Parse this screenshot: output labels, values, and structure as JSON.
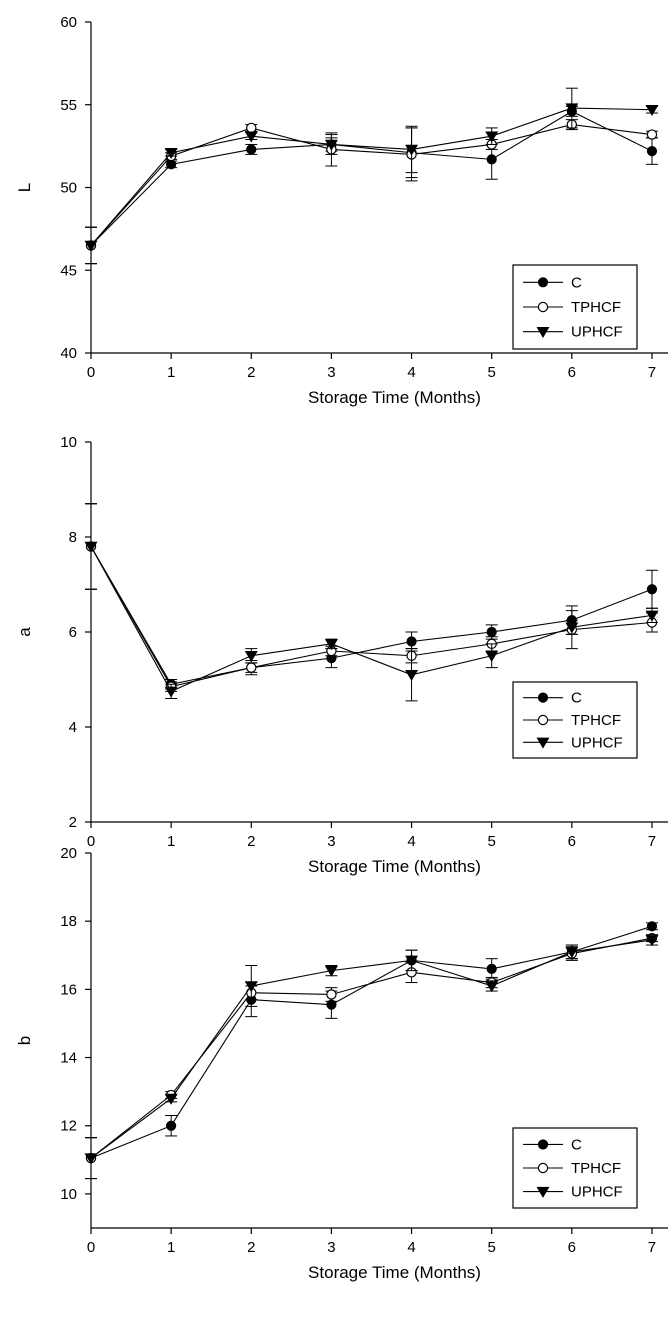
{
  "chart_data": [
    {
      "type": "line",
      "ylabel": "L",
      "xlabel": "Storage Time (Months)",
      "x": [
        0,
        1,
        2,
        3,
        4,
        5,
        6,
        7
      ],
      "xlim": [
        0,
        7.2
      ],
      "ylim": [
        40,
        60
      ],
      "yticks": [
        40,
        45,
        50,
        55,
        60
      ],
      "legend": "bottom-right",
      "series": [
        {
          "name": "C",
          "marker": "filled-circle",
          "values": [
            46.5,
            51.4,
            52.3,
            52.6,
            52.1,
            51.7,
            54.6,
            52.2
          ],
          "errors": [
            1.1,
            0.2,
            0.3,
            0.4,
            1.5,
            1.2,
            0.3,
            0.8
          ]
        },
        {
          "name": "TPHCF",
          "marker": "open-circle",
          "values": [
            46.5,
            51.9,
            53.6,
            52.3,
            52.0,
            52.6,
            53.8,
            53.2
          ],
          "errors": [
            1.1,
            0.2,
            0.2,
            1.0,
            1.6,
            0.3,
            0.3,
            0.2
          ]
        },
        {
          "name": "UPHCF",
          "marker": "filled-triangle-down",
          "values": [
            46.5,
            52.1,
            53.1,
            52.6,
            52.3,
            53.1,
            54.8,
            54.7
          ],
          "errors": [
            1.1,
            0.2,
            0.2,
            0.6,
            1.4,
            0.5,
            1.2,
            0.2
          ]
        }
      ]
    },
    {
      "type": "line",
      "ylabel": "a",
      "xlabel": "Storage Time (Months)",
      "x": [
        0,
        1,
        2,
        3,
        4,
        5,
        6,
        7
      ],
      "xlim": [
        0,
        7.2
      ],
      "ylim": [
        2,
        10
      ],
      "yticks": [
        2,
        4,
        6,
        8,
        10
      ],
      "legend": "bottom-right",
      "series": [
        {
          "name": "C",
          "marker": "filled-circle",
          "values": [
            7.8,
            4.9,
            5.25,
            5.45,
            5.8,
            6.0,
            6.25,
            6.9
          ],
          "errors": [
            0.9,
            0.1,
            0.15,
            0.2,
            0.2,
            0.15,
            0.3,
            0.4
          ]
        },
        {
          "name": "TPHCF",
          "marker": "open-circle",
          "values": [
            7.8,
            4.85,
            5.25,
            5.6,
            5.5,
            5.75,
            6.05,
            6.2
          ],
          "errors": [
            0.9,
            0.1,
            0.1,
            0.1,
            0.15,
            0.15,
            0.4,
            0.2
          ]
        },
        {
          "name": "UPHCF",
          "marker": "filled-triangle-down",
          "values": [
            7.8,
            4.75,
            5.5,
            5.75,
            5.1,
            5.5,
            6.1,
            6.35
          ],
          "errors": [
            0.9,
            0.15,
            0.15,
            0.1,
            0.55,
            0.25,
            0.15,
            0.15
          ]
        }
      ]
    },
    {
      "type": "line",
      "ylabel": "b",
      "xlabel": "Storage Time (Months)",
      "x": [
        0,
        1,
        2,
        3,
        4,
        5,
        6,
        7
      ],
      "xlim": [
        0,
        7.2
      ],
      "ylim": [
        9,
        20
      ],
      "yticks": [
        10,
        12,
        14,
        16,
        18,
        20
      ],
      "legend": "bottom-right",
      "series": [
        {
          "name": "C",
          "marker": "filled-circle",
          "values": [
            11.05,
            12.0,
            15.7,
            15.55,
            16.85,
            16.6,
            17.1,
            17.85
          ],
          "errors": [
            0.6,
            0.3,
            0.5,
            0.4,
            0.3,
            0.3,
            0.2,
            0.1
          ]
        },
        {
          "name": "TPHCF",
          "marker": "open-circle",
          "values": [
            11.05,
            12.9,
            15.9,
            15.85,
            16.5,
            16.2,
            17.05,
            17.5
          ],
          "errors": [
            0.6,
            0.1,
            0.2,
            0.2,
            0.3,
            0.15,
            0.2,
            0.1
          ]
        },
        {
          "name": "UPHCF",
          "marker": "filled-triangle-down",
          "values": [
            11.05,
            12.8,
            16.1,
            16.55,
            16.85,
            16.1,
            17.1,
            17.45
          ],
          "errors": [
            0.6,
            0.1,
            0.6,
            0.15,
            0.3,
            0.15,
            0.2,
            0.15
          ]
        }
      ]
    }
  ]
}
